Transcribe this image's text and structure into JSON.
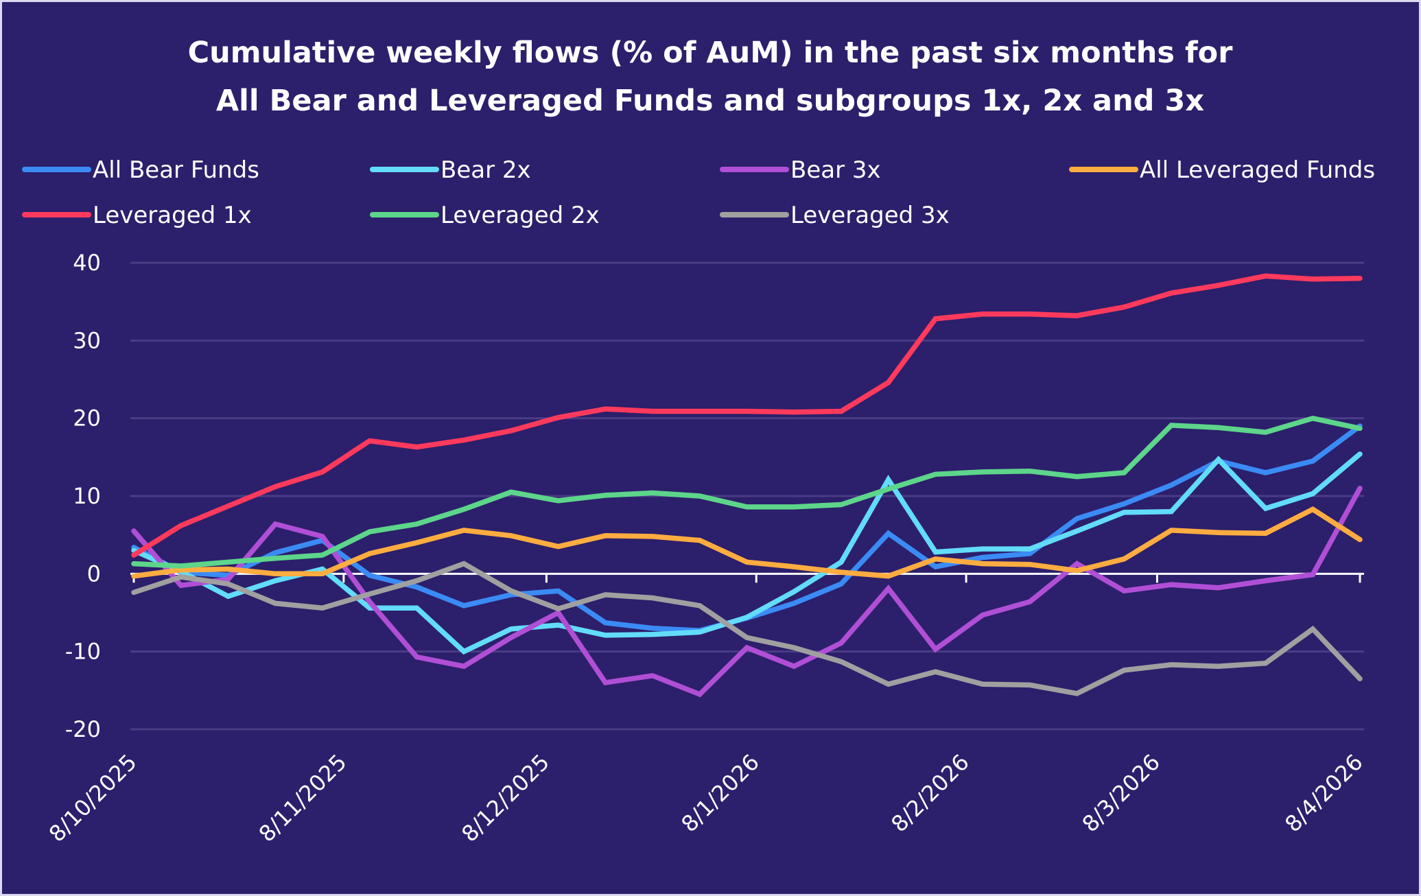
{
  "chart_data": {
    "type": "line",
    "title": [
      "Cumulative weekly flows (% of AuM) in the past six months for",
      "All Bear and Leveraged Funds and subgroups 1x, 2x and 3x"
    ],
    "xlabel": "",
    "ylabel": "",
    "ylim": [
      -20,
      40
    ],
    "yticks": [
      40,
      30,
      20,
      10,
      0,
      -10,
      -20
    ],
    "grid": true,
    "legend_position": "top",
    "num_points": 27,
    "x_tick_labels": [
      {
        "label": "8/10/2025",
        "index": 0
      },
      {
        "label": "8/11/2025",
        "index": 4.45
      },
      {
        "label": "8/12/2025",
        "index": 8.75
      },
      {
        "label": "8/1/2026",
        "index": 13.2
      },
      {
        "label": "8/2/2026",
        "index": 17.65
      },
      {
        "label": "8/3/2026",
        "index": 21.7
      },
      {
        "label": "8/4/2026",
        "index": 26
      }
    ],
    "series": [
      {
        "name": "All Bear Funds",
        "color": "#3b8bf5",
        "values": [
          3.4,
          0.2,
          -0.2,
          2.7,
          4.3,
          -0.2,
          -1.7,
          -4.1,
          -2.7,
          -2.2,
          -6.3,
          -7.0,
          -7.3,
          -5.7,
          -3.8,
          -1.3,
          5.2,
          0.9,
          2.1,
          2.6,
          7.1,
          9.0,
          11.4,
          14.5,
          13.0,
          14.5,
          19.0
        ]
      },
      {
        "name": "Bear 2x",
        "color": "#62dcf8",
        "values": [
          3.0,
          0.3,
          -2.9,
          -0.9,
          0.6,
          -4.4,
          -4.4,
          -10.0,
          -7.1,
          -6.6,
          -7.9,
          -7.8,
          -7.5,
          -5.6,
          -2.3,
          1.5,
          12.1,
          2.8,
          3.2,
          3.2,
          5.5,
          7.9,
          8.0,
          14.7,
          8.4,
          10.3,
          15.4
        ]
      },
      {
        "name": "Bear 3x",
        "color": "#b04fd6",
        "values": [
          5.5,
          -1.5,
          -0.7,
          6.4,
          4.8,
          -3.6,
          -10.7,
          -11.9,
          -8.2,
          -5.0,
          -14.0,
          -13.1,
          -15.5,
          -9.5,
          -11.9,
          -8.9,
          -1.9,
          -9.7,
          -5.3,
          -3.6,
          1.3,
          -2.2,
          -1.4,
          -1.8,
          -0.9,
          -0.1,
          11.0
        ]
      },
      {
        "name": "All Leveraged Funds",
        "color": "#ffac40",
        "values": [
          -0.3,
          0.5,
          0.6,
          0.0,
          0.0,
          2.6,
          4.0,
          5.6,
          4.9,
          3.5,
          4.9,
          4.8,
          4.3,
          1.5,
          0.9,
          0.2,
          -0.3,
          1.9,
          1.3,
          1.2,
          0.4,
          1.9,
          5.6,
          5.3,
          5.2,
          8.3,
          4.4
        ]
      },
      {
        "name": "Leveraged 1x",
        "color": "#ff3a5c",
        "values": [
          2.4,
          6.2,
          8.7,
          11.2,
          13.1,
          17.1,
          16.3,
          17.2,
          18.4,
          20.1,
          21.2,
          20.9,
          20.9,
          20.9,
          20.8,
          20.9,
          24.6,
          32.8,
          33.4,
          33.4,
          33.2,
          34.3,
          36.1,
          37.1,
          38.3,
          37.9,
          38.0
        ]
      },
      {
        "name": "Leveraged 2x",
        "color": "#5dd58a",
        "values": [
          1.3,
          1.0,
          1.5,
          2.0,
          2.4,
          5.4,
          6.4,
          8.3,
          10.5,
          9.4,
          10.1,
          10.4,
          10.0,
          8.6,
          8.6,
          8.9,
          10.9,
          12.8,
          13.1,
          13.2,
          12.5,
          13.0,
          19.1,
          18.8,
          18.2,
          20.0,
          18.7
        ]
      },
      {
        "name": "Leveraged 3x",
        "color": "#a0a0a0",
        "values": [
          -2.4,
          -0.4,
          -1.3,
          -3.8,
          -4.4,
          -2.6,
          -0.9,
          1.3,
          -2.2,
          -4.5,
          -2.7,
          -3.1,
          -4.1,
          -8.2,
          -9.5,
          -11.3,
          -14.2,
          -12.6,
          -14.2,
          -14.3,
          -15.4,
          -12.4,
          -11.7,
          -11.9,
          -11.5,
          -7.1,
          -13.5
        ]
      }
    ]
  },
  "colors": {
    "background": "#2c1f6b",
    "frame": "#dcd8f0",
    "gridline": "#4a3d85",
    "text": "#ffffff"
  }
}
